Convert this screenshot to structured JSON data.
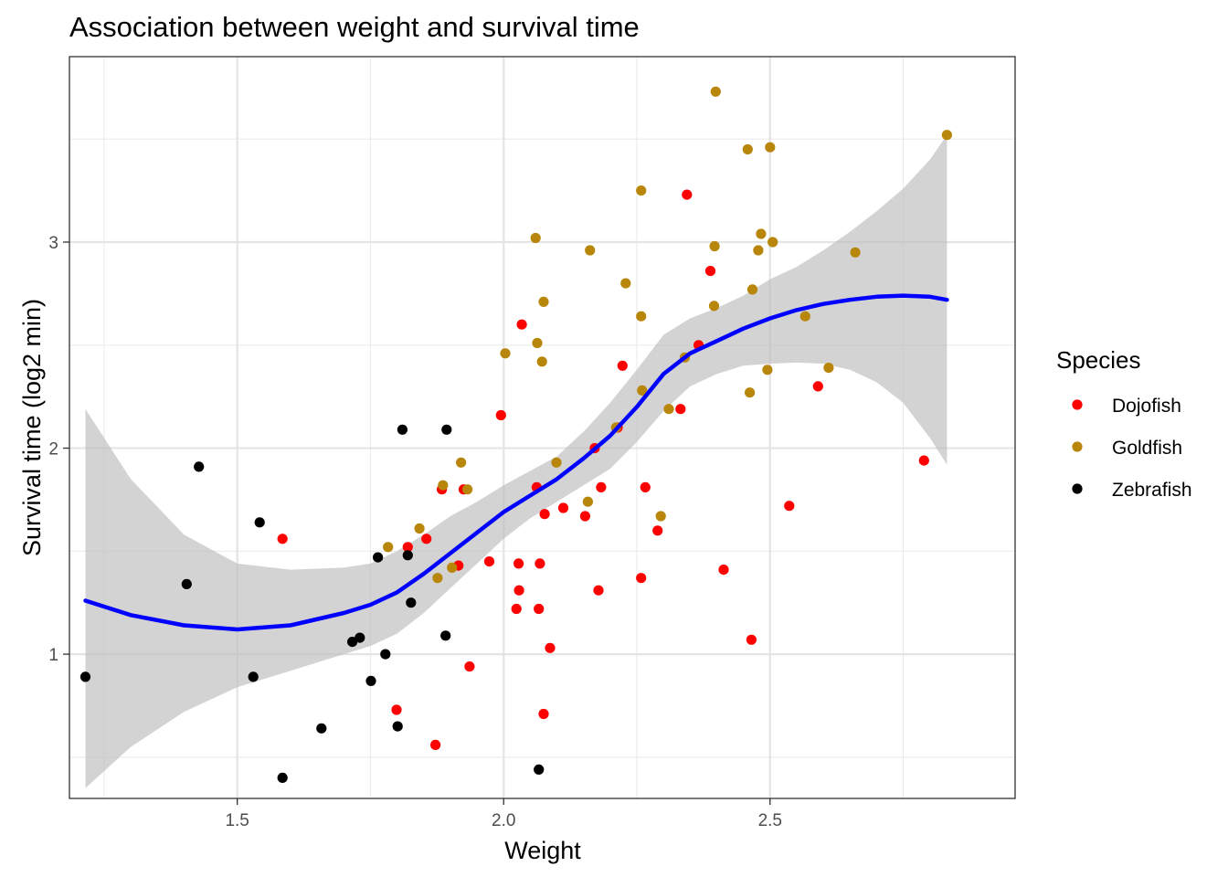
{
  "chart_data": {
    "type": "scatter",
    "title": "Association between weight and survival time",
    "xlabel": "Weight",
    "ylabel": "Survival time (log2 min)",
    "xlim": [
      1.185,
      2.96
    ],
    "ylim": [
      0.3,
      3.9
    ],
    "x_ticks": [
      1.5,
      2.0,
      2.5
    ],
    "x_tick_labels": [
      "1.5",
      "2.0",
      "2.5"
    ],
    "y_ticks": [
      1,
      2,
      3
    ],
    "y_tick_labels": [
      "1",
      "2",
      "3"
    ],
    "grid": true,
    "legend": {
      "title": "Species",
      "position": "right"
    },
    "series": [
      {
        "name": "Dojofish",
        "color": "#ff0000",
        "points": [
          [
            1.585,
            1.56
          ],
          [
            1.799,
            0.73
          ],
          [
            1.82,
            1.52
          ],
          [
            1.855,
            1.56
          ],
          [
            1.872,
            0.56
          ],
          [
            1.884,
            1.8
          ],
          [
            1.915,
            1.43
          ],
          [
            1.925,
            1.8
          ],
          [
            1.936,
            0.94
          ],
          [
            1.973,
            1.45
          ],
          [
            1.995,
            2.16
          ],
          [
            2.024,
            1.22
          ],
          [
            2.028,
            1.44
          ],
          [
            2.029,
            1.31
          ],
          [
            2.034,
            2.6
          ],
          [
            2.062,
            1.81
          ],
          [
            2.066,
            1.22
          ],
          [
            2.068,
            1.44
          ],
          [
            2.075,
            0.71
          ],
          [
            2.077,
            1.68
          ],
          [
            2.087,
            1.03
          ],
          [
            2.112,
            1.71
          ],
          [
            2.153,
            1.67
          ],
          [
            2.171,
            2.0
          ],
          [
            2.178,
            1.31
          ],
          [
            2.183,
            1.81
          ],
          [
            2.214,
            2.1
          ],
          [
            2.223,
            2.4
          ],
          [
            2.258,
            1.37
          ],
          [
            2.266,
            1.81
          ],
          [
            2.289,
            1.6
          ],
          [
            2.332,
            2.19
          ],
          [
            2.344,
            3.23
          ],
          [
            2.366,
            2.5
          ],
          [
            2.388,
            2.86
          ],
          [
            2.413,
            1.41
          ],
          [
            2.465,
            1.07
          ],
          [
            2.536,
            1.72
          ],
          [
            2.59,
            2.3
          ],
          [
            2.789,
            1.94
          ]
        ]
      },
      {
        "name": "Goldfish",
        "color": "#b8860b",
        "points": [
          [
            1.783,
            1.52
          ],
          [
            1.842,
            1.61
          ],
          [
            1.876,
            1.37
          ],
          [
            1.886,
            1.82
          ],
          [
            1.903,
            1.42
          ],
          [
            1.92,
            1.93
          ],
          [
            1.932,
            1.8
          ],
          [
            2.003,
            2.46
          ],
          [
            2.06,
            3.02
          ],
          [
            2.063,
            2.51
          ],
          [
            2.072,
            2.42
          ],
          [
            2.075,
            2.71
          ],
          [
            2.099,
            1.93
          ],
          [
            2.158,
            1.74
          ],
          [
            2.162,
            2.96
          ],
          [
            2.211,
            2.1
          ],
          [
            2.229,
            2.8
          ],
          [
            2.258,
            2.64
          ],
          [
            2.258,
            3.25
          ],
          [
            2.26,
            2.28
          ],
          [
            2.295,
            1.67
          ],
          [
            2.31,
            2.19
          ],
          [
            2.34,
            2.44
          ],
          [
            2.395,
            2.69
          ],
          [
            2.396,
            2.98
          ],
          [
            2.398,
            3.73
          ],
          [
            2.458,
            3.45
          ],
          [
            2.462,
            2.27
          ],
          [
            2.467,
            2.77
          ],
          [
            2.478,
            2.96
          ],
          [
            2.483,
            3.04
          ],
          [
            2.495,
            2.38
          ],
          [
            2.5,
            3.46
          ],
          [
            2.505,
            3.0
          ],
          [
            2.566,
            2.64
          ],
          [
            2.61,
            2.39
          ],
          [
            2.66,
            2.95
          ],
          [
            2.832,
            3.52
          ]
        ]
      },
      {
        "name": "Zebrafish",
        "color": "#000000",
        "points": [
          [
            1.215,
            0.89
          ],
          [
            1.405,
            1.34
          ],
          [
            1.428,
            1.91
          ],
          [
            1.53,
            0.89
          ],
          [
            1.542,
            1.64
          ],
          [
            1.585,
            0.4
          ],
          [
            1.658,
            0.64
          ],
          [
            1.716,
            1.06
          ],
          [
            1.73,
            1.08
          ],
          [
            1.751,
            0.87
          ],
          [
            1.764,
            1.47
          ],
          [
            1.778,
            1.0
          ],
          [
            1.801,
            0.65
          ],
          [
            1.81,
            2.09
          ],
          [
            1.82,
            1.48
          ],
          [
            1.826,
            1.25
          ],
          [
            1.891,
            1.09
          ],
          [
            1.893,
            2.09
          ],
          [
            2.066,
            0.44
          ]
        ]
      }
    ],
    "smooth": {
      "color": "#0000ff",
      "ribbon_color": "#bebebe",
      "x": [
        1.215,
        1.3,
        1.4,
        1.5,
        1.6,
        1.7,
        1.75,
        1.8,
        1.85,
        1.9,
        1.95,
        2.0,
        2.05,
        2.1,
        2.15,
        2.2,
        2.25,
        2.3,
        2.35,
        2.4,
        2.45,
        2.5,
        2.55,
        2.6,
        2.65,
        2.7,
        2.75,
        2.8,
        2.832
      ],
      "y": [
        1.26,
        1.19,
        1.14,
        1.12,
        1.14,
        1.2,
        1.24,
        1.3,
        1.39,
        1.49,
        1.59,
        1.69,
        1.77,
        1.85,
        1.95,
        2.06,
        2.2,
        2.36,
        2.46,
        2.52,
        2.58,
        2.63,
        2.67,
        2.7,
        2.72,
        2.735,
        2.74,
        2.735,
        2.72
      ],
      "lower": [
        0.35,
        0.55,
        0.72,
        0.84,
        0.92,
        1.0,
        1.04,
        1.1,
        1.2,
        1.32,
        1.44,
        1.56,
        1.66,
        1.74,
        1.82,
        1.9,
        2.03,
        2.18,
        2.3,
        2.36,
        2.4,
        2.41,
        2.415,
        2.41,
        2.38,
        2.32,
        2.22,
        2.05,
        1.92
      ],
      "upper": [
        2.19,
        1.85,
        1.58,
        1.44,
        1.41,
        1.42,
        1.44,
        1.5,
        1.58,
        1.67,
        1.74,
        1.82,
        1.89,
        1.96,
        2.08,
        2.22,
        2.38,
        2.55,
        2.63,
        2.68,
        2.74,
        2.82,
        2.88,
        2.96,
        3.05,
        3.15,
        3.26,
        3.4,
        3.52
      ]
    }
  }
}
